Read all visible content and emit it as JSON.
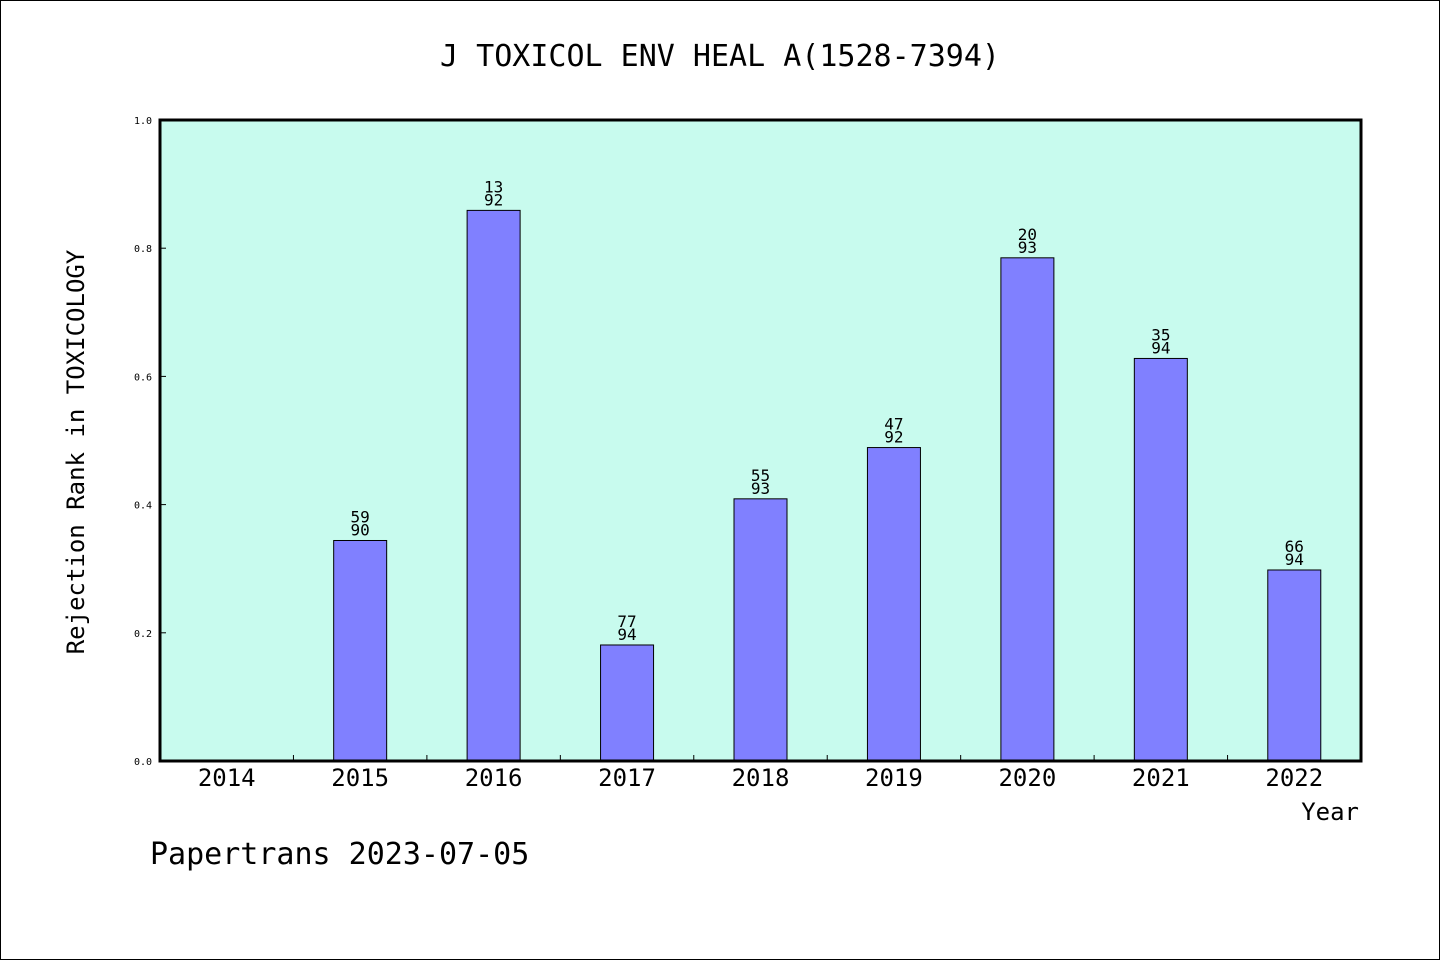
{
  "chart_data": {
    "type": "bar",
    "title": "J TOXICOL ENV HEAL A(1528-7394)",
    "xlabel": "Year",
    "ylabel": "Rejection Rank in TOXICOLOGY",
    "categories": [
      "2014",
      "2015",
      "2016",
      "2017",
      "2018",
      "2019",
      "2020",
      "2021",
      "2022"
    ],
    "values": [
      0,
      0.344,
      0.859,
      0.181,
      0.409,
      0.489,
      0.785,
      0.628,
      0.298
    ],
    "bar_labels": [
      null,
      {
        "rank": "59",
        "total": "90"
      },
      {
        "rank": "13",
        "total": "92"
      },
      {
        "rank": "77",
        "total": "94"
      },
      {
        "rank": "55",
        "total": "93"
      },
      {
        "rank": "47",
        "total": "92"
      },
      {
        "rank": "20",
        "total": "93"
      },
      {
        "rank": "35",
        "total": "94"
      },
      {
        "rank": "66",
        "total": "94"
      }
    ],
    "ylim": [
      0,
      1.0
    ],
    "yticks": [
      "0.0",
      "0.2",
      "0.4",
      "0.6",
      "0.8",
      "1.0"
    ],
    "colors": {
      "plot_background": "#c8fbee",
      "bar_fill": "#8080ff",
      "bar_stroke": "#000000"
    },
    "grid": false,
    "legend": "none"
  },
  "footer": "Papertrans 2023-07-05"
}
